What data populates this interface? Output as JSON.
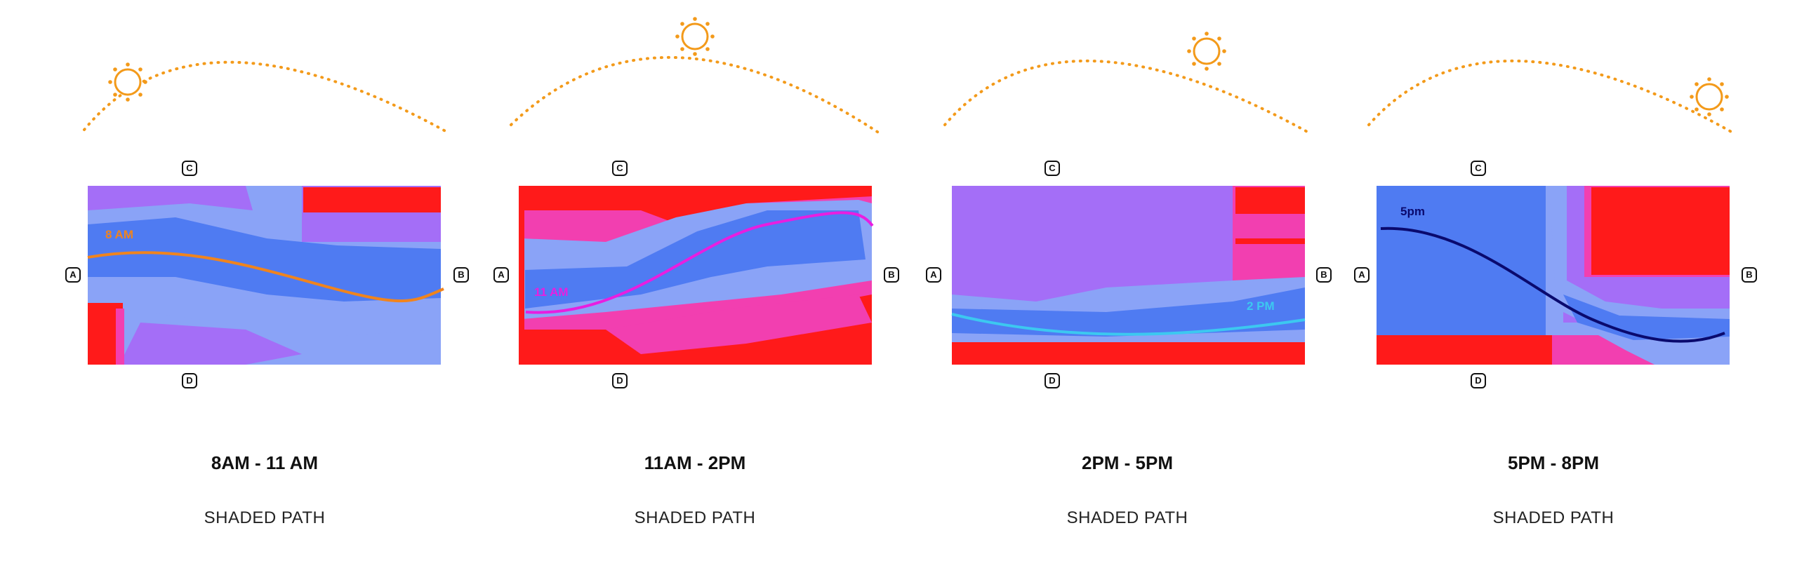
{
  "panels": [
    {
      "node_a": "A",
      "node_b": "B",
      "node_c": "C",
      "node_d": "D",
      "path_label": "8 AM",
      "path_color": "#f0841e",
      "time_range": "8AM - 11 AM",
      "caption": "SHADED PATH"
    },
    {
      "node_a": "A",
      "node_b": "B",
      "node_c": "C",
      "node_d": "D",
      "path_label": "11 AM",
      "path_color": "#e81ee0",
      "time_range": "11AM - 2PM",
      "caption": "SHADED PATH"
    },
    {
      "node_a": "A",
      "node_b": "B",
      "node_c": "C",
      "node_d": "D",
      "path_label": "2 PM",
      "path_color": "#3cc8f0",
      "time_range": "2PM - 5PM",
      "caption": "SHADED PATH"
    },
    {
      "node_a": "A",
      "node_b": "B",
      "node_c": "C",
      "node_d": "D",
      "path_label": "5pm",
      "path_color": "#0a0a6e",
      "time_range": "5PM - 8PM",
      "caption": "SHADED PATH"
    }
  ],
  "colors": {
    "sun": "#f39a1a",
    "shade_deep": "#4f7bf2",
    "shade_light": "#8aa3f7",
    "partial": "#a46ef7",
    "sun_exposed": "#ff1a1a",
    "transition": "#f23fb0"
  }
}
